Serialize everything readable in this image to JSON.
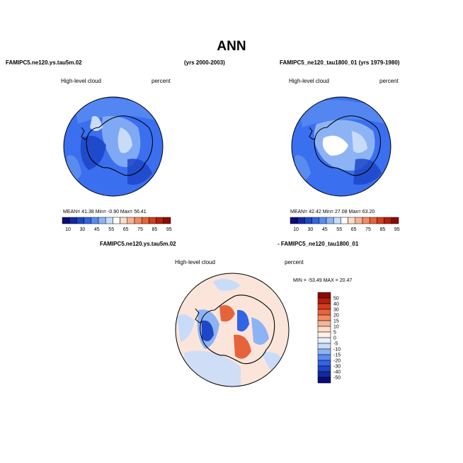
{
  "page_title": "ANN",
  "panels": [
    {
      "left_header": "FAMIPC5.ne120.ys.tau5m.02",
      "right_header": "(yrs 2000-2003)",
      "field_label": "High-level cloud",
      "units_label": "percent",
      "stats_text": "MEAN=  41.38  Min=  -0.90  Max=  56.41"
    },
    {
      "left_header": "FAMIPC5_ne120_tau1800_01 (yrs 1979-1980)",
      "field_label": "High-level cloud",
      "units_label": "percent",
      "stats_text": "MEAN=  42.42  Min=  27.08  Max=  63.20"
    },
    {
      "left_header": "FAMIPC5.ne120.ys.tau5m.02",
      "right_header": "- FAMIPC5_ne120_tau1800_01",
      "field_label": "High-level cloud",
      "units_label": "percent",
      "stats_text": "MIN = -53.49  MAX =  20.47"
    }
  ],
  "colorbar_abs": {
    "labels": [
      "10",
      "30",
      "45",
      "55",
      "65",
      "75",
      "85",
      "95"
    ],
    "colors": [
      "#0a0a78",
      "#1428a0",
      "#1e46c8",
      "#3264e6",
      "#5a8cf0",
      "#8cb4f5",
      "#c8dcfa",
      "#ffffff",
      "#fadcc8",
      "#f5b496",
      "#f08c64",
      "#e6643c",
      "#d23c1e",
      "#b41e0a",
      "#8c0a00"
    ]
  },
  "colorbar_diff": {
    "labels": [
      "50",
      "40",
      "30",
      "20",
      "15",
      "10",
      "5",
      "0",
      "-5",
      "-10",
      "-15",
      "-20",
      "-30",
      "-40",
      "-50"
    ],
    "colors": [
      "#8c0a00",
      "#b41e0a",
      "#d23c1e",
      "#e6643c",
      "#f08c64",
      "#f5b496",
      "#fadcc8",
      "#fff0e6",
      "#e6f0ff",
      "#c8dcfa",
      "#8cb4f5",
      "#5a8cf0",
      "#3264e6",
      "#1e46c8",
      "#1428a0",
      "#0a0a78"
    ]
  }
}
